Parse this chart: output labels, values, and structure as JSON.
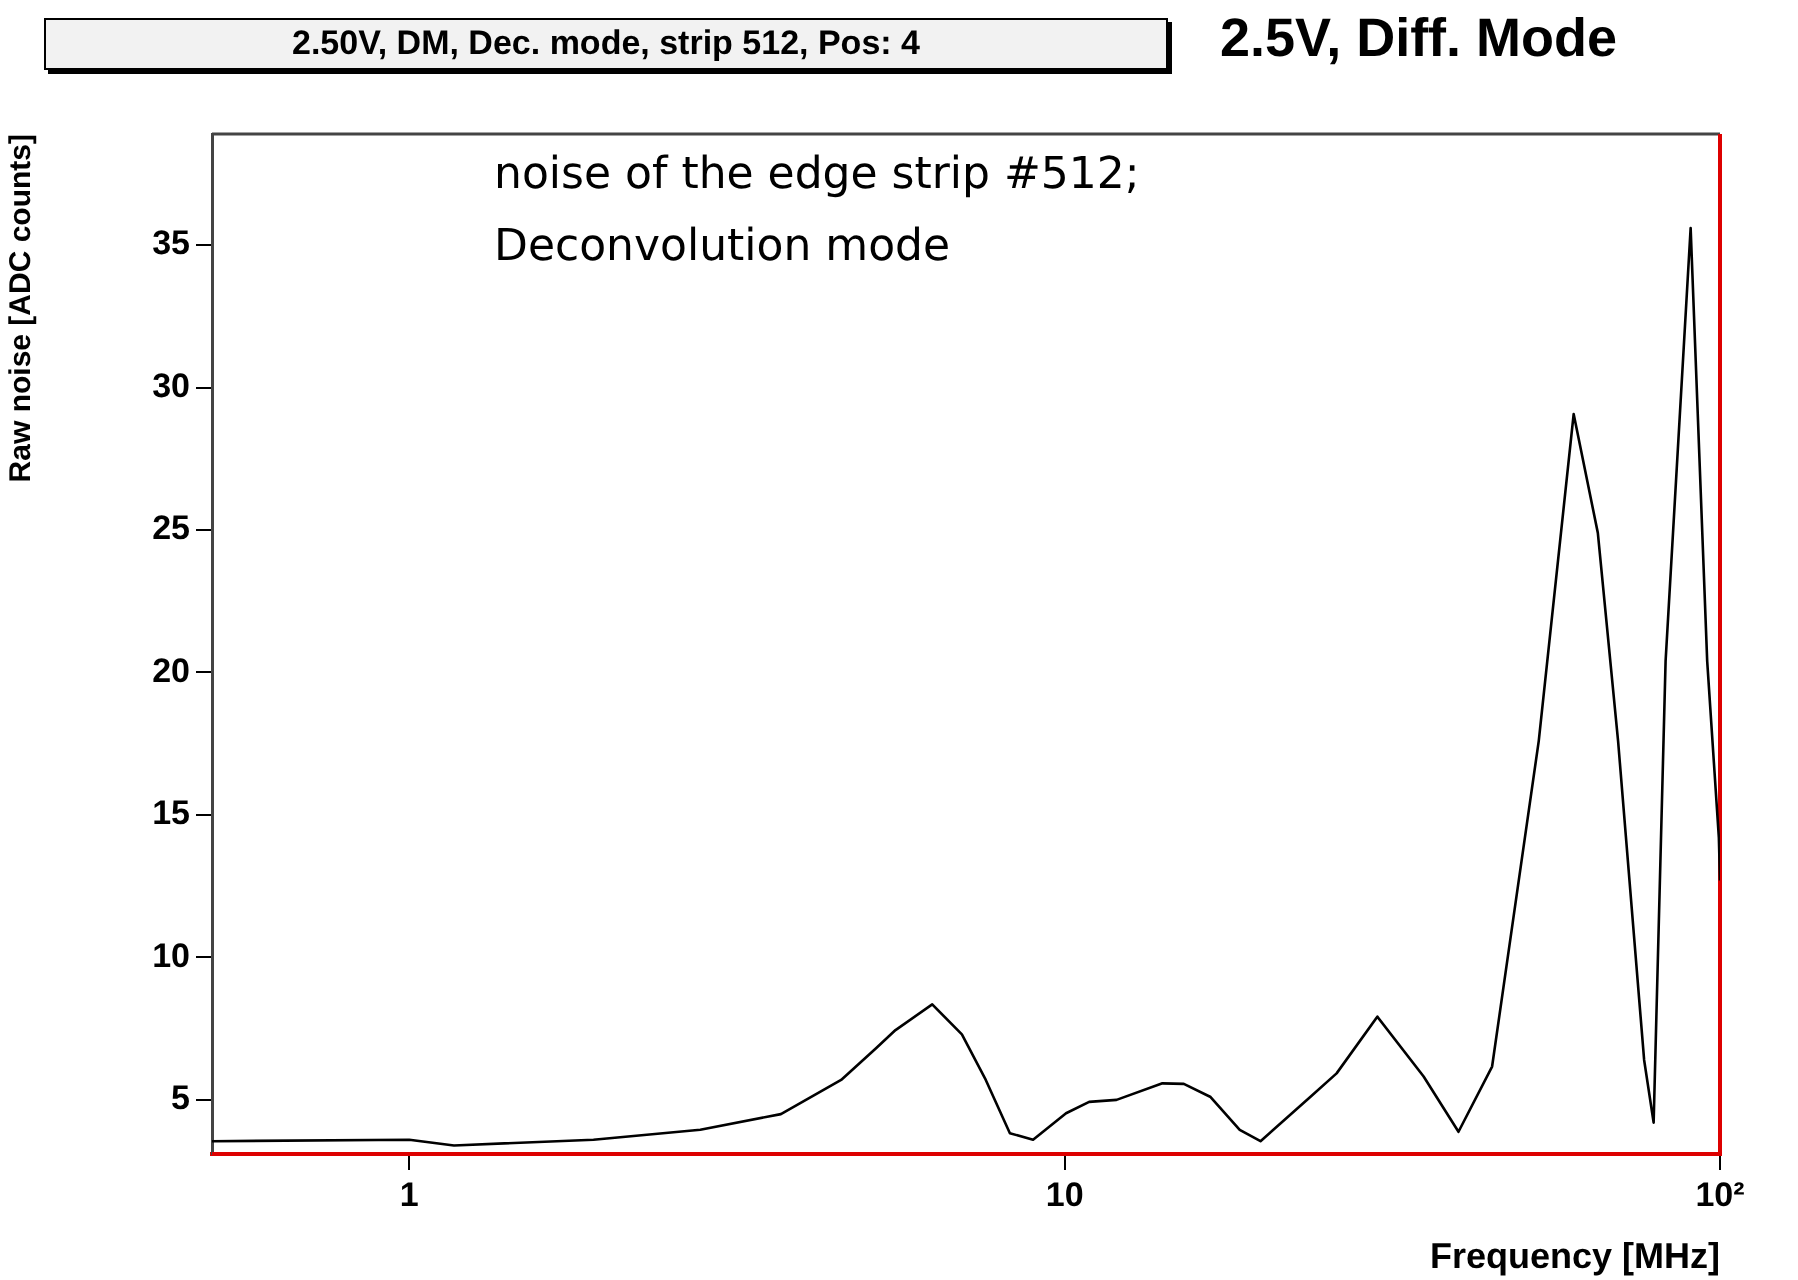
{
  "chart_data": {
    "type": "line",
    "title": "2.50V, DM, Dec. mode, strip 512, Pos: 4",
    "subtitle": "2.5V, Diff. Mode",
    "xlabel": "Frequency [MHz]",
    "ylabel": "Raw noise [ADC counts]",
    "annotations": [
      "noise of the edge strip #512; Deconvolution mode"
    ],
    "log": "x",
    "xlim": [
      0.5,
      100
    ],
    "ylim": [
      3.1,
      38.9
    ],
    "xticks": [
      1,
      10,
      {
        "value": 100,
        "label": "10²"
      }
    ],
    "yticks": [
      5,
      10,
      15,
      20,
      25,
      30,
      35
    ],
    "legend": false,
    "marker": "none",
    "line_style": "solid",
    "series": [
      {
        "color": "#000000",
        "x": [
          0.5,
          1,
          1.17,
          1.91,
          2.78,
          3.69,
          4.56,
          5.15,
          5.52,
          6.28,
          6.97,
          7.58,
          8.25,
          8.95,
          10.05,
          10.9,
          12.0,
          14.1,
          15.2,
          16.7,
          18.5,
          19.9,
          23.7,
          26.0,
          30.0,
          35.3,
          39.9,
          44.9,
          52.9,
          59.8,
          65.1,
          69.9,
          76.6,
          79.2,
          82.6,
          90.2,
          95.6,
          99.6,
          100
        ],
        "values": [
          3.55,
          3.6,
          3.4,
          3.6,
          3.95,
          4.5,
          5.7,
          6.8,
          7.45,
          8.35,
          7.3,
          5.7,
          3.83,
          3.6,
          4.53,
          4.93,
          5.0,
          5.58,
          5.56,
          5.1,
          3.95,
          3.55,
          5.1,
          5.93,
          7.92,
          5.82,
          3.88,
          6.17,
          17.6,
          29.07,
          24.9,
          17.6,
          6.4,
          4.2,
          20.4,
          35.6,
          20.4,
          14.2,
          12.7
        ]
      }
    ]
  }
}
